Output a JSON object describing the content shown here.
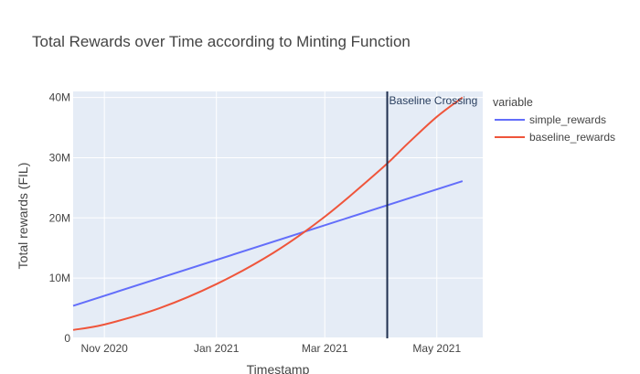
{
  "chart_data": {
    "type": "line",
    "title": "Total Rewards over Time according to Minting Function",
    "xlabel": "Timestamp",
    "ylabel": "Total rewards (FIL)",
    "x_ticks": [
      "Nov 2020",
      "Jan 2021",
      "Mar 2021",
      "May 2021"
    ],
    "y_ticks": [
      "0",
      "10M",
      "20M",
      "30M",
      "40M"
    ],
    "ylim": [
      0,
      41000000
    ],
    "xlim": [
      "2020-10-15",
      "2021-05-26"
    ],
    "grid": true,
    "legend": {
      "title": "variable",
      "position": "right"
    },
    "series": [
      {
        "name": "simple_rewards",
        "color": "#636efa",
        "points": [
          [
            "2020-10-15",
            5400000
          ],
          [
            "2021-05-15",
            26100000
          ]
        ]
      },
      {
        "name": "baseline_rewards",
        "color": "#ef553b",
        "points": [
          [
            "2020-10-15",
            1400000
          ],
          [
            "2020-11-01",
            2300000
          ],
          [
            "2020-12-01",
            5000000
          ],
          [
            "2021-01-01",
            9000000
          ],
          [
            "2021-02-01",
            14200000
          ],
          [
            "2021-03-01",
            20200000
          ],
          [
            "2021-04-01",
            28200000
          ],
          [
            "2021-04-15",
            32300000
          ],
          [
            "2021-05-01",
            36800000
          ],
          [
            "2021-05-15",
            40000000
          ]
        ]
      }
    ],
    "vline": {
      "x": "2021-04-04",
      "label": "Baseline Crossing",
      "color": "#1f2f4f"
    }
  }
}
